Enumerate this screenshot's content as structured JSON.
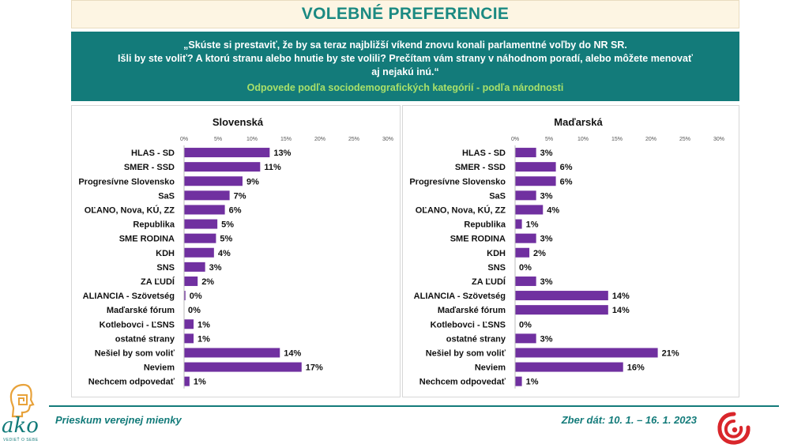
{
  "header": {
    "title": "VOLEBNÉ PREFERENCIE",
    "question_lines": [
      "„Skúste si prestaviť, že by sa teraz najbližší víkend znovu konali parlamentné voľby do NR SR.",
      "Išli by ste voliť? A ktorú stranu alebo hnutie by ste volili? Prečítam vám strany v náhodnom poradí, alebo môžete menovať",
      "aj nejakú inú.“"
    ],
    "subtitle": "Odpovede podľa sociodemografických kategórií - podľa národnosti"
  },
  "footer": {
    "left": "Prieskum verejnej mienky",
    "right": "Zber dát: 10. 1. – 16. 1. 2023",
    "logo_text": "ako",
    "logo_sub": "VEDIEŤ O SEBE"
  },
  "colors": {
    "bar": "#7030a0",
    "accent": "#137b7a",
    "subtitle": "#a8e06a"
  },
  "chart_data": [
    {
      "type": "bar",
      "orientation": "horizontal",
      "title": "Slovenská",
      "xlim": [
        0,
        30
      ],
      "ticks": [
        "0%",
        "5%",
        "10%",
        "15%",
        "20%",
        "25%",
        "30%"
      ],
      "tick_values": [
        0,
        5,
        10,
        15,
        20,
        25,
        30
      ],
      "categories": [
        "HLAS - SD",
        "SMER - SSD",
        "Progresívne Slovensko",
        "SaS",
        "OĽANO, Nova, KÚ, ZZ",
        "Republika",
        "SME RODINA",
        "KDH",
        "SNS",
        "ZA ĽUDÍ",
        "ALIANCIA - Szövetség",
        "Maďarské fórum",
        "Kotlebovci - ĽSNS",
        "ostatné strany",
        "Nešiel by som voliť",
        "Neviem",
        "Nechcem odpovedať"
      ],
      "values": [
        12.6,
        11.2,
        8.6,
        6.7,
        6.0,
        4.9,
        4.7,
        4.4,
        3.1,
        2.0,
        0.2,
        0.0,
        1.4,
        1.4,
        14.1,
        17.3,
        0.8
      ],
      "labels": [
        "13%",
        "11%",
        "9%",
        "7%",
        "6%",
        "5%",
        "5%",
        "4%",
        "3%",
        "2%",
        "0%",
        "0%",
        "1%",
        "1%",
        "14%",
        "17%",
        "1%"
      ]
    },
    {
      "type": "bar",
      "orientation": "horizontal",
      "title": "Maďarská",
      "xlim": [
        0,
        30
      ],
      "ticks": [
        "0%",
        "5%",
        "10%",
        "15%",
        "20%",
        "25%",
        "30%"
      ],
      "tick_values": [
        0,
        5,
        10,
        15,
        20,
        25,
        30
      ],
      "categories": [
        "HLAS - SD",
        "SMER - SSD",
        "Progresívne Slovensko",
        "SaS",
        "OĽANO, Nova, KÚ, ZZ",
        "Republika",
        "SME RODINA",
        "KDH",
        "SNS",
        "ZA ĽUDÍ",
        "ALIANCIA - Szövetség",
        "Maďarské fórum",
        "Kotlebovci - ĽSNS",
        "ostatné strany",
        "Nešiel by som voliť",
        "Neviem",
        "Nechcem odpovedať"
      ],
      "values": [
        3.1,
        6.0,
        6.0,
        3.1,
        4.1,
        1.0,
        3.1,
        2.1,
        0.0,
        3.1,
        13.7,
        13.7,
        0.0,
        3.1,
        21.0,
        15.9,
        1.0
      ],
      "labels": [
        "3%",
        "6%",
        "6%",
        "3%",
        "4%",
        "1%",
        "3%",
        "2%",
        "0%",
        "3%",
        "14%",
        "14%",
        "0%",
        "3%",
        "21%",
        "16%",
        "1%"
      ]
    }
  ]
}
